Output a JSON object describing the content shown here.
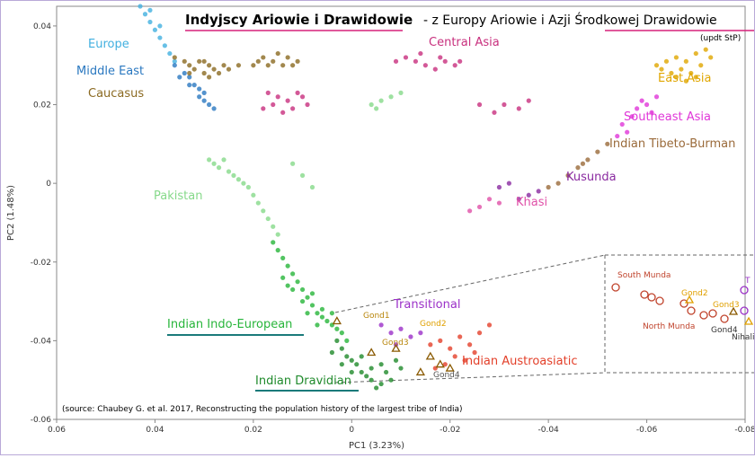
{
  "header": {
    "title_part1": "Indyjscy Ariowie i Drawidowie",
    "title_part2": " - z Europy Ariowie i Azji Środkowej Drawidowie",
    "update_note": "(updt StP)"
  },
  "source_note": "(source: Chaubey G. et al. 2017, Reconstructing the population history of the largest tribe of India)",
  "chart_data": {
    "type": "scatter",
    "xlabel": "PC1 (3.23%)",
    "ylabel": "PC2 (1.48%)",
    "xlim": [
      0.06,
      -0.08
    ],
    "ylim": [
      -0.06,
      0.045
    ],
    "x_axis_reversed": true,
    "x_ticks": [
      "0.06",
      "0.04",
      "0.02",
      "0",
      "-0.02",
      "-0.04",
      "-0.06",
      "-0.08"
    ],
    "y_ticks": [
      "0.04",
      "0.02",
      "0",
      "-0.02",
      "-0.04",
      "-0.06"
    ],
    "grid": false,
    "group_labels": [
      {
        "name": "Europe",
        "color": "#42b0e0"
      },
      {
        "name": "Middle East",
        "color": "#2a78c0"
      },
      {
        "name": "Caucasus",
        "color": "#8b6a22"
      },
      {
        "name": "Central Asia",
        "color": "#c8307e"
      },
      {
        "name": "East Asia",
        "color": "#e0a600"
      },
      {
        "name": "Southeast Asia",
        "color": "#e036d8"
      },
      {
        "name": "Indian Tibeto-Burman",
        "color": "#9a6a3a"
      },
      {
        "name": "Kusunda",
        "color": "#8a2aa0"
      },
      {
        "name": "Khasi",
        "color": "#e050a8"
      },
      {
        "name": "Pakistan",
        "color": "#86d98a"
      },
      {
        "name": "Indian Indo-European",
        "color": "#27b53a"
      },
      {
        "name": "Transitional",
        "color": "#9b30c8"
      },
      {
        "name": "Indian Austroasiatic",
        "color": "#e3402a"
      },
      {
        "name": "Indian Dravidian",
        "color": "#1f8a2b"
      }
    ],
    "annotations": [
      "Gond1",
      "Gond2",
      "Gond3",
      "Gond4"
    ],
    "inset": {
      "labels": [
        "South Munda",
        "Gond2",
        "Gond3",
        "North Munda",
        "Gond4",
        "Nihali",
        "T"
      ]
    },
    "series": [
      {
        "group": "Europe",
        "color": "#42b0e0",
        "points": [
          [
            0.043,
            0.045
          ],
          [
            0.042,
            0.043
          ],
          [
            0.041,
            0.041
          ],
          [
            0.04,
            0.039
          ],
          [
            0.039,
            0.037
          ],
          [
            0.038,
            0.035
          ],
          [
            0.037,
            0.033
          ],
          [
            0.036,
            0.031
          ],
          [
            0.041,
            0.044
          ],
          [
            0.039,
            0.04
          ]
        ]
      },
      {
        "group": "Middle East",
        "color": "#2a78c0",
        "points": [
          [
            0.036,
            0.03
          ],
          [
            0.034,
            0.028
          ],
          [
            0.033,
            0.027
          ],
          [
            0.032,
            0.025
          ],
          [
            0.031,
            0.024
          ],
          [
            0.03,
            0.023
          ],
          [
            0.035,
            0.027
          ],
          [
            0.033,
            0.025
          ],
          [
            0.03,
            0.021
          ],
          [
            0.029,
            0.02
          ],
          [
            0.028,
            0.019
          ],
          [
            0.031,
            0.022
          ]
        ]
      },
      {
        "group": "Caucasus",
        "color": "#8b6a22",
        "points": [
          [
            0.036,
            0.032
          ],
          [
            0.034,
            0.031
          ],
          [
            0.033,
            0.03
          ],
          [
            0.032,
            0.029
          ],
          [
            0.031,
            0.031
          ],
          [
            0.03,
            0.028
          ],
          [
            0.029,
            0.03
          ],
          [
            0.028,
            0.029
          ],
          [
            0.027,
            0.028
          ],
          [
            0.026,
            0.03
          ],
          [
            0.025,
            0.029
          ],
          [
            0.033,
            0.028
          ],
          [
            0.029,
            0.027
          ],
          [
            0.03,
            0.031
          ],
          [
            0.023,
            0.03
          ]
        ]
      },
      {
        "group": "Caucasus (central)",
        "color": "#8b6a22",
        "points": [
          [
            0.02,
            0.03
          ],
          [
            0.018,
            0.032
          ],
          [
            0.016,
            0.031
          ],
          [
            0.015,
            0.033
          ],
          [
            0.013,
            0.032
          ],
          [
            0.012,
            0.03
          ],
          [
            0.011,
            0.031
          ],
          [
            0.017,
            0.03
          ],
          [
            0.014,
            0.03
          ],
          [
            0.019,
            0.031
          ]
        ]
      },
      {
        "group": "Central Asia",
        "color": "#c8307e",
        "points": [
          [
            -0.009,
            0.031
          ],
          [
            -0.011,
            0.032
          ],
          [
            -0.013,
            0.031
          ],
          [
            -0.015,
            0.03
          ],
          [
            -0.017,
            0.029
          ],
          [
            -0.019,
            0.031
          ],
          [
            -0.021,
            0.03
          ],
          [
            -0.014,
            0.033
          ],
          [
            -0.018,
            0.032
          ],
          [
            -0.022,
            0.031
          ],
          [
            0.017,
            0.023
          ],
          [
            0.016,
            0.02
          ],
          [
            0.015,
            0.022
          ],
          [
            0.013,
            0.021
          ],
          [
            0.012,
            0.019
          ],
          [
            0.01,
            0.022
          ],
          [
            0.009,
            0.02
          ],
          [
            0.014,
            0.018
          ],
          [
            0.011,
            0.023
          ],
          [
            0.018,
            0.019
          ],
          [
            -0.026,
            0.02
          ],
          [
            -0.029,
            0.018
          ],
          [
            -0.031,
            0.02
          ],
          [
            -0.034,
            0.019
          ],
          [
            -0.036,
            0.021
          ]
        ]
      },
      {
        "group": "East Asia",
        "color": "#e0a600",
        "points": [
          [
            -0.062,
            0.03
          ],
          [
            -0.064,
            0.031
          ],
          [
            -0.066,
            0.032
          ],
          [
            -0.068,
            0.031
          ],
          [
            -0.07,
            0.033
          ],
          [
            -0.072,
            0.034
          ],
          [
            -0.067,
            0.029
          ],
          [
            -0.069,
            0.028
          ],
          [
            -0.071,
            0.03
          ],
          [
            -0.065,
            0.028
          ],
          [
            -0.073,
            0.032
          ],
          [
            -0.07,
            0.027
          ],
          [
            -0.068,
            0.026
          ],
          [
            -0.066,
            0.027
          ],
          [
            -0.063,
            0.029
          ]
        ]
      },
      {
        "group": "Southeast Asia",
        "color": "#e036d8",
        "points": [
          [
            -0.062,
            0.022
          ],
          [
            -0.06,
            0.02
          ],
          [
            -0.058,
            0.019
          ],
          [
            -0.057,
            0.017
          ],
          [
            -0.055,
            0.015
          ],
          [
            -0.056,
            0.013
          ],
          [
            -0.054,
            0.012
          ],
          [
            -0.059,
            0.021
          ],
          [
            -0.061,
            0.018
          ]
        ]
      },
      {
        "group": "Indian Tibeto-Burman",
        "color": "#9a6a3a",
        "points": [
          [
            -0.05,
            0.008
          ],
          [
            -0.048,
            0.006
          ],
          [
            -0.046,
            0.004
          ],
          [
            -0.044,
            0.002
          ],
          [
            -0.042,
            0.0
          ],
          [
            -0.04,
            -0.001
          ],
          [
            -0.052,
            0.01
          ],
          [
            -0.047,
            0.005
          ]
        ]
      },
      {
        "group": "Kusunda",
        "color": "#8a2aa0",
        "points": [
          [
            -0.038,
            -0.002
          ],
          [
            -0.036,
            -0.003
          ],
          [
            -0.034,
            -0.004
          ],
          [
            -0.032,
            0.0
          ],
          [
            -0.03,
            -0.001
          ]
        ]
      },
      {
        "group": "Khasi",
        "color": "#e050a8",
        "points": [
          [
            -0.028,
            -0.004
          ],
          [
            -0.026,
            -0.006
          ],
          [
            -0.024,
            -0.007
          ],
          [
            -0.03,
            -0.005
          ]
        ]
      },
      {
        "group": "Pakistan",
        "color": "#86d98a",
        "points": [
          [
            0.029,
            0.006
          ],
          [
            0.028,
            0.005
          ],
          [
            0.027,
            0.004
          ],
          [
            0.026,
            0.006
          ],
          [
            0.025,
            0.003
          ],
          [
            0.024,
            0.002
          ],
          [
            0.023,
            0.001
          ],
          [
            0.022,
            0.0
          ],
          [
            0.021,
            -0.001
          ],
          [
            0.02,
            -0.003
          ],
          [
            0.019,
            -0.005
          ],
          [
            0.018,
            -0.007
          ],
          [
            0.017,
            -0.009
          ],
          [
            0.016,
            -0.011
          ],
          [
            0.015,
            -0.013
          ],
          [
            -0.004,
            0.02
          ],
          [
            -0.006,
            0.021
          ],
          [
            -0.008,
            0.022
          ],
          [
            -0.01,
            0.023
          ],
          [
            -0.005,
            0.019
          ],
          [
            0.01,
            0.002
          ],
          [
            0.012,
            0.005
          ],
          [
            0.008,
            -0.001
          ]
        ]
      },
      {
        "group": "Indian Indo-European",
        "color": "#27b53a",
        "points": [
          [
            0.016,
            -0.015
          ],
          [
            0.015,
            -0.017
          ],
          [
            0.014,
            -0.019
          ],
          [
            0.013,
            -0.021
          ],
          [
            0.012,
            -0.023
          ],
          [
            0.011,
            -0.025
          ],
          [
            0.01,
            -0.027
          ],
          [
            0.009,
            -0.029
          ],
          [
            0.008,
            -0.031
          ],
          [
            0.007,
            -0.033
          ],
          [
            0.006,
            -0.034
          ],
          [
            0.005,
            -0.035
          ],
          [
            0.004,
            -0.036
          ],
          [
            0.003,
            -0.037
          ],
          [
            0.002,
            -0.038
          ],
          [
            0.012,
            -0.027
          ],
          [
            0.01,
            -0.03
          ],
          [
            0.008,
            -0.028
          ],
          [
            0.006,
            -0.032
          ],
          [
            0.004,
            -0.033
          ],
          [
            0.014,
            -0.024
          ],
          [
            0.013,
            -0.026
          ],
          [
            0.009,
            -0.033
          ],
          [
            0.007,
            -0.036
          ],
          [
            0.001,
            -0.04
          ]
        ]
      },
      {
        "group": "Indian Dravidian",
        "color": "#1f8a2b",
        "points": [
          [
            0.003,
            -0.04
          ],
          [
            0.002,
            -0.042
          ],
          [
            0.001,
            -0.044
          ],
          [
            0.0,
            -0.045
          ],
          [
            -0.001,
            -0.046
          ],
          [
            -0.002,
            -0.048
          ],
          [
            -0.003,
            -0.049
          ],
          [
            -0.004,
            -0.05
          ],
          [
            -0.006,
            -0.051
          ],
          [
            -0.008,
            -0.05
          ],
          [
            0.004,
            -0.043
          ],
          [
            0.002,
            -0.046
          ],
          [
            0.0,
            -0.048
          ],
          [
            -0.002,
            -0.044
          ],
          [
            -0.004,
            -0.047
          ],
          [
            -0.006,
            -0.046
          ],
          [
            -0.007,
            -0.048
          ],
          [
            -0.005,
            -0.052
          ],
          [
            -0.01,
            -0.047
          ],
          [
            -0.009,
            -0.045
          ]
        ]
      },
      {
        "group": "Transitional",
        "color": "#9b30c8",
        "points": [
          [
            -0.006,
            -0.036
          ],
          [
            -0.008,
            -0.038
          ],
          [
            -0.01,
            -0.037
          ],
          [
            -0.012,
            -0.039
          ],
          [
            -0.014,
            -0.038
          ],
          [
            -0.009,
            -0.041
          ]
        ]
      },
      {
        "group": "Indian Austroasiatic",
        "color": "#e3402a",
        "points": [
          [
            -0.016,
            -0.041
          ],
          [
            -0.018,
            -0.04
          ],
          [
            -0.02,
            -0.042
          ],
          [
            -0.022,
            -0.039
          ],
          [
            -0.024,
            -0.041
          ],
          [
            -0.026,
            -0.038
          ],
          [
            -0.021,
            -0.044
          ],
          [
            -0.019,
            -0.046
          ],
          [
            -0.023,
            -0.045
          ],
          [
            -0.025,
            -0.043
          ],
          [
            -0.028,
            -0.036
          ],
          [
            -0.017,
            -0.047
          ]
        ]
      },
      {
        "group": "Gond triangles",
        "color": "#8a5a00",
        "points": [
          [
            0.003,
            -0.035
          ],
          [
            -0.004,
            -0.043
          ],
          [
            -0.009,
            -0.042
          ],
          [
            -0.016,
            -0.044
          ],
          [
            -0.018,
            -0.046
          ],
          [
            -0.02,
            -0.047
          ],
          [
            -0.014,
            -0.048
          ]
        ]
      }
    ]
  }
}
